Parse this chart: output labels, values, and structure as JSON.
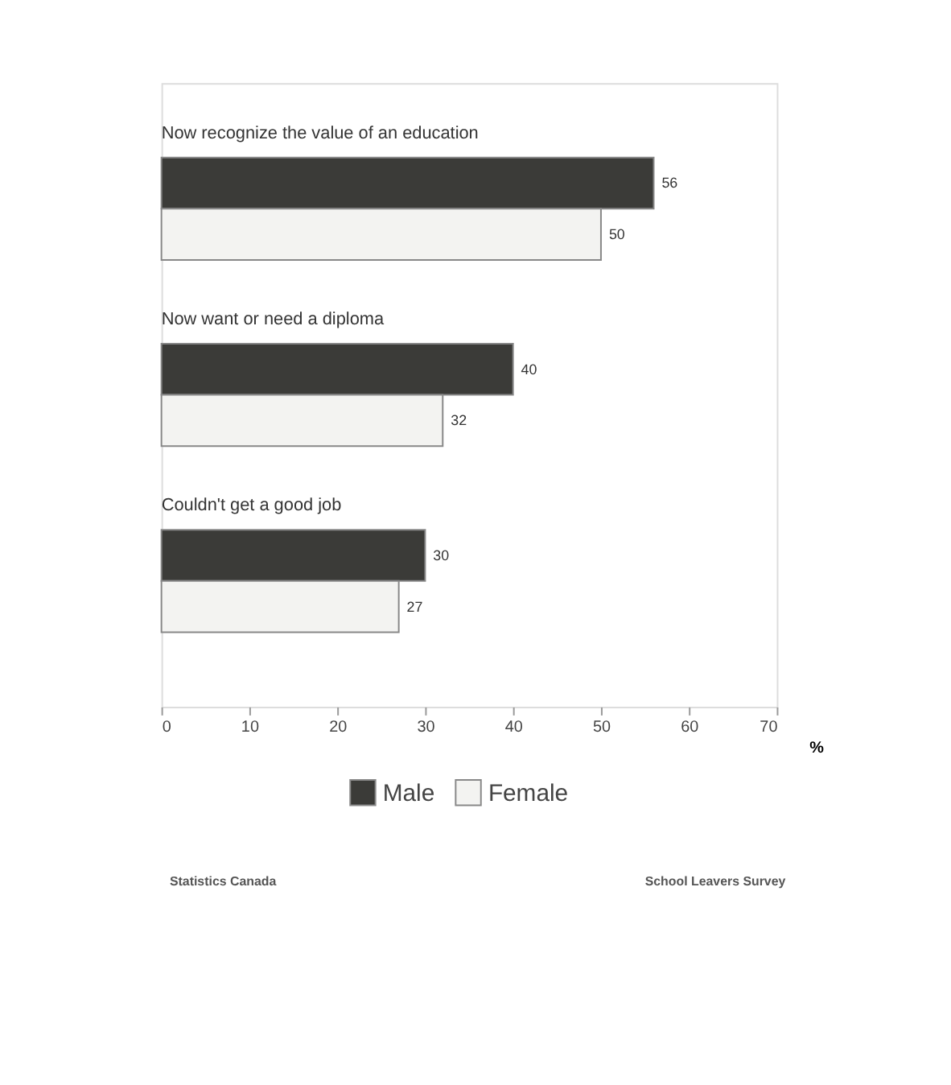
{
  "chart_data": {
    "type": "bar",
    "orientation": "horizontal",
    "categories": [
      "Now  recognize the value of an education",
      "Now  want or need a diploma",
      "Couldn't get a good job"
    ],
    "series": [
      {
        "name": "Male",
        "color": "#3b3b38",
        "values": [
          56,
          40,
          30
        ]
      },
      {
        "name": "Female",
        "color": "#f3f3f1",
        "values": [
          50,
          32,
          27
        ]
      }
    ],
    "xlim": [
      0,
      70
    ],
    "xticks": [
      0,
      10,
      20,
      30,
      40,
      50,
      60,
      70
    ],
    "xlabel": "%",
    "data_labels": true,
    "grid": false,
    "legend": "bottom",
    "annotations": [
      "Statistics Canada",
      "School Leavers Survey"
    ]
  }
}
